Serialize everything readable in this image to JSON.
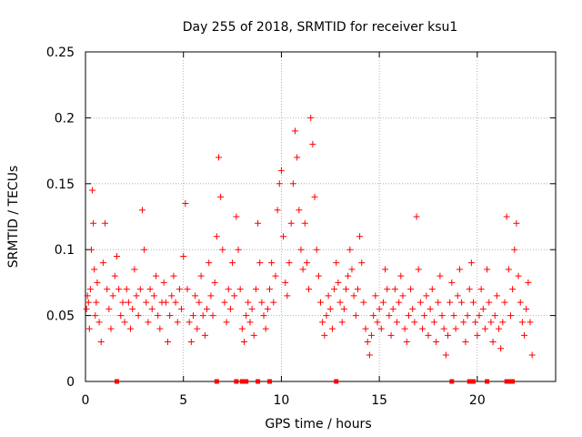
{
  "chart_data": {
    "type": "scatter",
    "title": "Day 255 of 2018, SRMTID for receiver ksu1",
    "xlabel": "GPS time / hours",
    "ylabel": "SRMTID / TECUs",
    "xlim": [
      0,
      24
    ],
    "ylim": [
      0,
      0.25
    ],
    "xticks": [
      0,
      5,
      10,
      15,
      20
    ],
    "xtick_labels": [
      "0",
      "5",
      "10",
      "15",
      "20"
    ],
    "yticks": [
      0,
      0.05,
      0.1,
      0.15,
      0.2,
      0.25
    ],
    "ytick_labels": [
      "0",
      "0.05",
      "0.1",
      "0.15",
      "0.2",
      "0.25"
    ],
    "grid": true,
    "marker": "plus",
    "series_color": "#ff0000",
    "gap_markers_hours": [
      1.6,
      6.7,
      7.7,
      8.0,
      8.2,
      8.8,
      9.4,
      12.8,
      18.7,
      19.6,
      19.8,
      20.5,
      21.5,
      21.7,
      21.8
    ],
    "points": [
      [
        0.05,
        0.055
      ],
      [
        0.1,
        0.065
      ],
      [
        0.15,
        0.06
      ],
      [
        0.2,
        0.04
      ],
      [
        0.25,
        0.07
      ],
      [
        0.3,
        0.1
      ],
      [
        0.35,
        0.145
      ],
      [
        0.4,
        0.12
      ],
      [
        0.45,
        0.085
      ],
      [
        0.5,
        0.05
      ],
      [
        0.55,
        0.06
      ],
      [
        0.6,
        0.075
      ],
      [
        0.7,
        0.045
      ],
      [
        0.8,
        0.03
      ],
      [
        0.9,
        0.09
      ],
      [
        1.0,
        0.12
      ],
      [
        1.1,
        0.07
      ],
      [
        1.2,
        0.055
      ],
      [
        1.3,
        0.04
      ],
      [
        1.4,
        0.065
      ],
      [
        1.5,
        0.08
      ],
      [
        1.6,
        0.095
      ],
      [
        1.7,
        0.07
      ],
      [
        1.8,
        0.05
      ],
      [
        1.9,
        0.06
      ],
      [
        2.0,
        0.045
      ],
      [
        2.1,
        0.07
      ],
      [
        2.2,
        0.06
      ],
      [
        2.3,
        0.04
      ],
      [
        2.4,
        0.055
      ],
      [
        2.5,
        0.085
      ],
      [
        2.6,
        0.065
      ],
      [
        2.7,
        0.05
      ],
      [
        2.8,
        0.07
      ],
      [
        2.9,
        0.13
      ],
      [
        3.0,
        0.1
      ],
      [
        3.1,
        0.06
      ],
      [
        3.2,
        0.045
      ],
      [
        3.3,
        0.07
      ],
      [
        3.4,
        0.055
      ],
      [
        3.5,
        0.065
      ],
      [
        3.6,
        0.08
      ],
      [
        3.7,
        0.05
      ],
      [
        3.8,
        0.04
      ],
      [
        3.9,
        0.06
      ],
      [
        4.0,
        0.075
      ],
      [
        4.1,
        0.06
      ],
      [
        4.2,
        0.03
      ],
      [
        4.3,
        0.05
      ],
      [
        4.4,
        0.065
      ],
      [
        4.5,
        0.08
      ],
      [
        4.6,
        0.06
      ],
      [
        4.7,
        0.045
      ],
      [
        4.8,
        0.07
      ],
      [
        4.9,
        0.055
      ],
      [
        5.0,
        0.095
      ],
      [
        5.1,
        0.135
      ],
      [
        5.2,
        0.07
      ],
      [
        5.3,
        0.045
      ],
      [
        5.4,
        0.03
      ],
      [
        5.5,
        0.05
      ],
      [
        5.6,
        0.065
      ],
      [
        5.7,
        0.04
      ],
      [
        5.8,
        0.06
      ],
      [
        5.9,
        0.08
      ],
      [
        6.0,
        0.05
      ],
      [
        6.1,
        0.035
      ],
      [
        6.2,
        0.055
      ],
      [
        6.3,
        0.09
      ],
      [
        6.4,
        0.065
      ],
      [
        6.5,
        0.05
      ],
      [
        6.6,
        0.075
      ],
      [
        6.7,
        0.11
      ],
      [
        6.8,
        0.17
      ],
      [
        6.9,
        0.14
      ],
      [
        7.0,
        0.1
      ],
      [
        7.1,
        0.06
      ],
      [
        7.2,
        0.045
      ],
      [
        7.3,
        0.07
      ],
      [
        7.4,
        0.055
      ],
      [
        7.5,
        0.09
      ],
      [
        7.6,
        0.065
      ],
      [
        7.7,
        0.125
      ],
      [
        7.8,
        0.1
      ],
      [
        7.9,
        0.07
      ],
      [
        8.0,
        0.04
      ],
      [
        8.1,
        0.03
      ],
      [
        8.2,
        0.05
      ],
      [
        8.3,
        0.06
      ],
      [
        8.4,
        0.045
      ],
      [
        8.5,
        0.055
      ],
      [
        8.6,
        0.035
      ],
      [
        8.7,
        0.07
      ],
      [
        8.8,
        0.12
      ],
      [
        8.9,
        0.09
      ],
      [
        9.0,
        0.06
      ],
      [
        9.1,
        0.05
      ],
      [
        9.2,
        0.04
      ],
      [
        9.3,
        0.055
      ],
      [
        9.4,
        0.07
      ],
      [
        9.5,
        0.09
      ],
      [
        9.6,
        0.06
      ],
      [
        9.7,
        0.08
      ],
      [
        9.8,
        0.13
      ],
      [
        9.9,
        0.15
      ],
      [
        10.0,
        0.16
      ],
      [
        10.1,
        0.11
      ],
      [
        10.2,
        0.075
      ],
      [
        10.3,
        0.065
      ],
      [
        10.4,
        0.09
      ],
      [
        10.5,
        0.12
      ],
      [
        10.6,
        0.15
      ],
      [
        10.7,
        0.19
      ],
      [
        10.8,
        0.17
      ],
      [
        10.9,
        0.13
      ],
      [
        11.0,
        0.1
      ],
      [
        11.1,
        0.085
      ],
      [
        11.2,
        0.12
      ],
      [
        11.3,
        0.09
      ],
      [
        11.4,
        0.07
      ],
      [
        11.5,
        0.2
      ],
      [
        11.6,
        0.18
      ],
      [
        11.7,
        0.14
      ],
      [
        11.8,
        0.1
      ],
      [
        11.9,
        0.08
      ],
      [
        12.0,
        0.06
      ],
      [
        12.1,
        0.045
      ],
      [
        12.2,
        0.035
      ],
      [
        12.3,
        0.05
      ],
      [
        12.4,
        0.065
      ],
      [
        12.5,
        0.055
      ],
      [
        12.6,
        0.04
      ],
      [
        12.7,
        0.07
      ],
      [
        12.8,
        0.09
      ],
      [
        12.9,
        0.075
      ],
      [
        13.0,
        0.06
      ],
      [
        13.1,
        0.045
      ],
      [
        13.2,
        0.055
      ],
      [
        13.3,
        0.07
      ],
      [
        13.4,
        0.08
      ],
      [
        13.5,
        0.1
      ],
      [
        13.6,
        0.085
      ],
      [
        13.7,
        0.065
      ],
      [
        13.8,
        0.05
      ],
      [
        13.9,
        0.07
      ],
      [
        14.0,
        0.11
      ],
      [
        14.1,
        0.09
      ],
      [
        14.2,
        0.06
      ],
      [
        14.3,
        0.04
      ],
      [
        14.4,
        0.03
      ],
      [
        14.5,
        0.02
      ],
      [
        14.6,
        0.035
      ],
      [
        14.7,
        0.05
      ],
      [
        14.8,
        0.065
      ],
      [
        14.9,
        0.045
      ],
      [
        15.0,
        0.055
      ],
      [
        15.1,
        0.04
      ],
      [
        15.2,
        0.06
      ],
      [
        15.3,
        0.085
      ],
      [
        15.4,
        0.07
      ],
      [
        15.5,
        0.05
      ],
      [
        15.6,
        0.035
      ],
      [
        15.7,
        0.055
      ],
      [
        15.8,
        0.07
      ],
      [
        15.9,
        0.045
      ],
      [
        16.0,
        0.06
      ],
      [
        16.1,
        0.08
      ],
      [
        16.2,
        0.065
      ],
      [
        16.3,
        0.04
      ],
      [
        16.4,
        0.03
      ],
      [
        16.5,
        0.05
      ],
      [
        16.6,
        0.07
      ],
      [
        16.7,
        0.055
      ],
      [
        16.8,
        0.045
      ],
      [
        16.9,
        0.125
      ],
      [
        17.0,
        0.085
      ],
      [
        17.1,
        0.06
      ],
      [
        17.2,
        0.04
      ],
      [
        17.3,
        0.05
      ],
      [
        17.4,
        0.065
      ],
      [
        17.5,
        0.035
      ],
      [
        17.6,
        0.055
      ],
      [
        17.7,
        0.07
      ],
      [
        17.8,
        0.045
      ],
      [
        17.9,
        0.03
      ],
      [
        18.0,
        0.06
      ],
      [
        18.1,
        0.08
      ],
      [
        18.2,
        0.05
      ],
      [
        18.3,
        0.04
      ],
      [
        18.4,
        0.02
      ],
      [
        18.5,
        0.035
      ],
      [
        18.6,
        0.06
      ],
      [
        18.7,
        0.075
      ],
      [
        18.8,
        0.05
      ],
      [
        18.9,
        0.04
      ],
      [
        19.0,
        0.065
      ],
      [
        19.1,
        0.085
      ],
      [
        19.2,
        0.06
      ],
      [
        19.3,
        0.045
      ],
      [
        19.4,
        0.03
      ],
      [
        19.5,
        0.05
      ],
      [
        19.6,
        0.07
      ],
      [
        19.7,
        0.09
      ],
      [
        19.8,
        0.06
      ],
      [
        19.9,
        0.045
      ],
      [
        20.0,
        0.035
      ],
      [
        20.1,
        0.05
      ],
      [
        20.2,
        0.07
      ],
      [
        20.3,
        0.055
      ],
      [
        20.4,
        0.04
      ],
      [
        20.5,
        0.085
      ],
      [
        20.6,
        0.06
      ],
      [
        20.7,
        0.045
      ],
      [
        20.8,
        0.03
      ],
      [
        20.9,
        0.05
      ],
      [
        21.0,
        0.065
      ],
      [
        21.1,
        0.04
      ],
      [
        21.2,
        0.025
      ],
      [
        21.3,
        0.045
      ],
      [
        21.4,
        0.06
      ],
      [
        21.5,
        0.125
      ],
      [
        21.6,
        0.085
      ],
      [
        21.7,
        0.05
      ],
      [
        21.8,
        0.07
      ],
      [
        21.9,
        0.1
      ],
      [
        22.0,
        0.12
      ],
      [
        22.1,
        0.08
      ],
      [
        22.2,
        0.06
      ],
      [
        22.3,
        0.045
      ],
      [
        22.4,
        0.035
      ],
      [
        22.5,
        0.055
      ],
      [
        22.6,
        0.075
      ],
      [
        22.7,
        0.045
      ],
      [
        22.8,
        0.02
      ]
    ]
  }
}
